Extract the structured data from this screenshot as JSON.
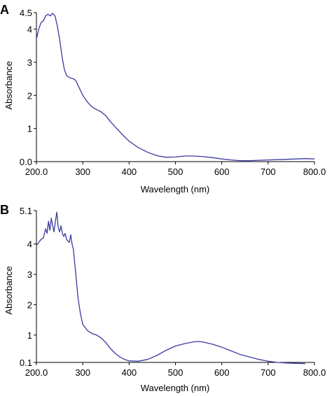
{
  "chart_data": [
    {
      "panel": "A",
      "type": "line",
      "title": "",
      "xlabel": "Wavelength (nm)",
      "ylabel": "Absorbance",
      "xlim": [
        200,
        800
      ],
      "ylim": [
        0,
        4.5
      ],
      "x_ticks": [
        200,
        300,
        400,
        500,
        600,
        700,
        800
      ],
      "x_tick_labels": [
        "200.0",
        "300",
        "400",
        "500",
        "600",
        "700",
        "800.0"
      ],
      "y_ticks": [
        0,
        1,
        2,
        3,
        4,
        4.5
      ],
      "y_tick_labels": [
        "0.0",
        "1",
        "2",
        "3",
        "4",
        "4.5"
      ],
      "grid": false,
      "legend": "none",
      "line_color": "#3a3aa0",
      "series": [
        {
          "x": [
            200,
            205,
            210,
            215,
            220,
            225,
            230,
            235,
            240,
            245,
            250,
            255,
            260,
            265,
            270,
            275,
            280,
            285,
            290,
            300,
            310,
            320,
            330,
            340,
            350,
            360,
            370,
            380,
            390,
            400,
            420,
            440,
            460,
            480,
            500,
            520,
            540,
            560,
            580,
            600,
            620,
            640,
            660,
            680,
            700,
            720,
            740,
            760,
            780,
            800
          ],
          "y": [
            3.7,
            4.0,
            4.2,
            4.25,
            4.4,
            4.45,
            4.4,
            4.48,
            4.4,
            4.1,
            3.7,
            3.2,
            2.8,
            2.6,
            2.55,
            2.52,
            2.5,
            2.45,
            2.3,
            2.0,
            1.8,
            1.65,
            1.57,
            1.5,
            1.38,
            1.2,
            1.05,
            0.9,
            0.75,
            0.62,
            0.42,
            0.28,
            0.18,
            0.13,
            0.14,
            0.17,
            0.17,
            0.15,
            0.12,
            0.08,
            0.05,
            0.03,
            0.03,
            0.04,
            0.05,
            0.06,
            0.07,
            0.08,
            0.09,
            0.08
          ]
        }
      ]
    },
    {
      "panel": "B",
      "type": "line",
      "title": "",
      "xlabel": "Wavelength (nm)",
      "ylabel": "Absorbance",
      "xlim": [
        200,
        800
      ],
      "ylim": [
        0.1,
        5.1
      ],
      "x_ticks": [
        200,
        300,
        400,
        500,
        600,
        700,
        800
      ],
      "x_tick_labels": [
        "200.0",
        "300",
        "400",
        "500",
        "600",
        "700",
        "800.0"
      ],
      "y_ticks": [
        0.1,
        1,
        2,
        3,
        4,
        5.1
      ],
      "y_tick_labels": [
        "0.1",
        "1",
        "2",
        "3",
        "4",
        "5.1"
      ],
      "grid": false,
      "legend": "none",
      "line_color": "#3a3aa0",
      "series": [
        {
          "x": [
            200,
            205,
            210,
            215,
            220,
            223,
            226,
            229,
            232,
            235,
            238,
            241,
            244,
            247,
            250,
            253,
            256,
            259,
            262,
            265,
            268,
            271,
            274,
            277,
            280,
            285,
            290,
            295,
            300,
            310,
            320,
            330,
            340,
            350,
            360,
            370,
            380,
            390,
            400,
            420,
            440,
            460,
            480,
            500,
            520,
            540,
            550,
            560,
            580,
            600,
            620,
            640,
            660,
            680,
            700,
            720,
            740,
            760,
            780
          ],
          "y": [
            3.95,
            4.05,
            4.15,
            4.2,
            4.5,
            4.35,
            4.75,
            4.45,
            4.85,
            4.6,
            4.4,
            4.75,
            5.05,
            4.55,
            4.4,
            4.6,
            4.35,
            4.25,
            4.35,
            4.15,
            4.1,
            4.05,
            4.3,
            4.0,
            3.8,
            3.0,
            2.2,
            1.7,
            1.35,
            1.15,
            1.05,
            1.0,
            0.9,
            0.75,
            0.55,
            0.4,
            0.28,
            0.2,
            0.15,
            0.14,
            0.2,
            0.33,
            0.5,
            0.64,
            0.72,
            0.78,
            0.79,
            0.77,
            0.7,
            0.6,
            0.48,
            0.36,
            0.28,
            0.2,
            0.14,
            0.1,
            0.08,
            0.07,
            0.06
          ]
        }
      ]
    }
  ]
}
